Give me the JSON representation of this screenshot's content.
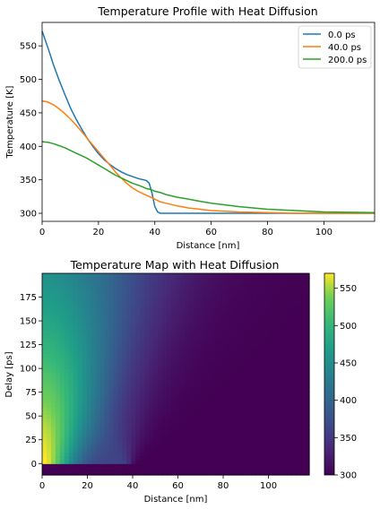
{
  "chart_data": [
    {
      "type": "line",
      "title": "Temperature Profile with Heat Diffusion",
      "xlabel": "Distance [nm]",
      "ylabel": "Temperature [K]",
      "xlim": [
        0,
        118
      ],
      "ylim": [
        288,
        585
      ],
      "xticks": [
        "0",
        "20",
        "40",
        "60",
        "80",
        "100"
      ],
      "yticks": [
        "300",
        "350",
        "400",
        "450",
        "500",
        "550"
      ],
      "grid": false,
      "legend": "top-right",
      "x": [
        0,
        2,
        4,
        6,
        8,
        10,
        12,
        14,
        16,
        18,
        20,
        22,
        24,
        26,
        28,
        30,
        32,
        34,
        36,
        37,
        38,
        39,
        40,
        41,
        42,
        44,
        48,
        52,
        56,
        60,
        70,
        80,
        90,
        100,
        118
      ],
      "series": [
        {
          "name": "0.0 ps",
          "color": "#1f77b4",
          "values": [
            572,
            548,
            522,
            499,
            478,
            458,
            441,
            426,
            412,
            400,
            389,
            380,
            373,
            367,
            362,
            358,
            355,
            352,
            350,
            349,
            345,
            330,
            310,
            302,
            300,
            300,
            300,
            300,
            300,
            300,
            300,
            300,
            300,
            300,
            300
          ]
        },
        {
          "name": "40.0 ps",
          "color": "#ff7f0e",
          "values": [
            468,
            466,
            462,
            456,
            449,
            441,
            432,
            422,
            412,
            402,
            392,
            382,
            372,
            362,
            353,
            345,
            338,
            333,
            329,
            327,
            325,
            323,
            321,
            319,
            317,
            315,
            311,
            308,
            306,
            304,
            302,
            301,
            300,
            300,
            300
          ]
        },
        {
          "name": "200.0 ps",
          "color": "#2ca02c",
          "values": [
            407,
            406,
            404,
            401,
            398,
            394,
            390,
            386,
            382,
            377,
            372,
            367,
            362,
            357,
            353,
            349,
            345,
            342,
            339,
            337,
            336,
            335,
            333,
            332,
            331,
            328,
            324,
            321,
            318,
            315,
            310,
            306,
            304,
            302,
            301
          ]
        }
      ]
    },
    {
      "type": "heatmap",
      "title": "Temperature Map with Heat Diffusion",
      "xlabel": "Distance [nm]",
      "ylabel": "Delay [ps]",
      "xlim": [
        0,
        118
      ],
      "ylim": [
        -12,
        200
      ],
      "xticks": [
        "0",
        "20",
        "40",
        "60",
        "80",
        "100"
      ],
      "yticks": [
        "0",
        "25",
        "50",
        "75",
        "100",
        "125",
        "150",
        "175"
      ],
      "colormap": "viridis",
      "colorbar": {
        "min": 300,
        "max": 570,
        "ticks": [
          "300",
          "350",
          "400",
          "450",
          "500",
          "550"
        ]
      },
      "pre_excitation_temperature": 300,
      "excitation_delay": 0
    }
  ]
}
